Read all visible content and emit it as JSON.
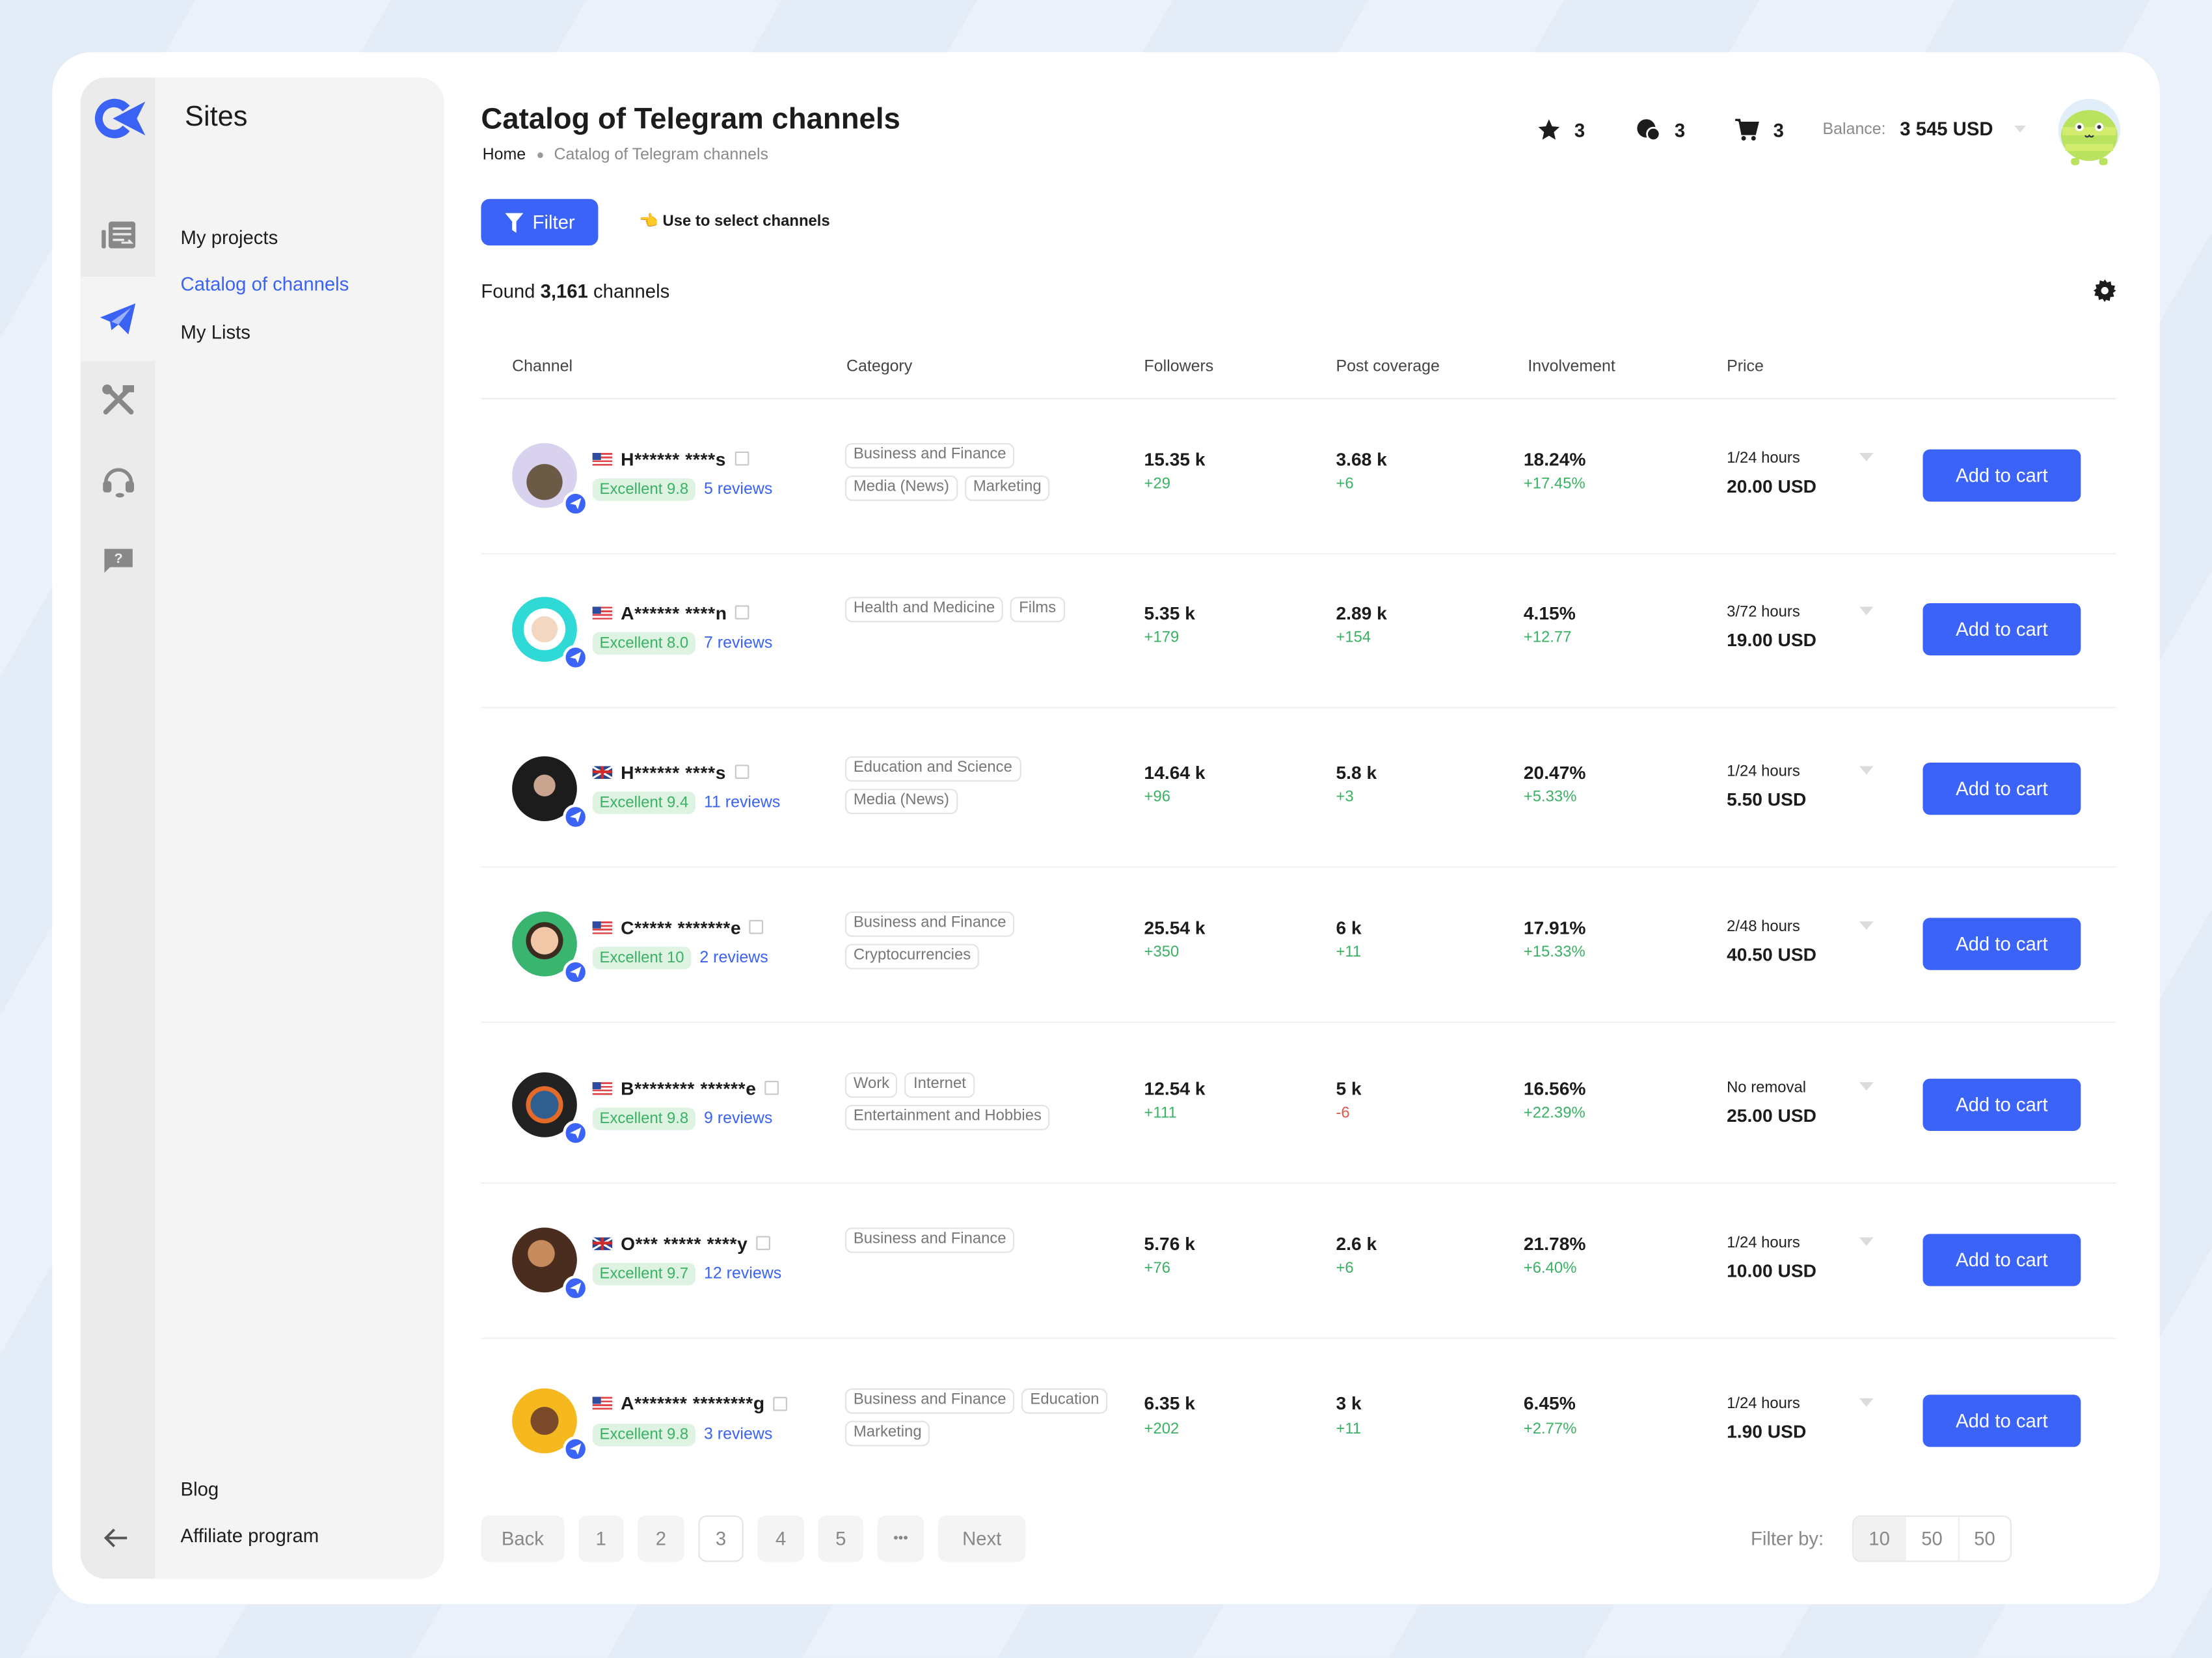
{
  "colors": {
    "accent": "#3c63f7",
    "positive": "#3ab163",
    "negative": "#e05a47"
  },
  "sidebar": {
    "section_title": "Sites",
    "items": [
      {
        "label": "My projects"
      },
      {
        "label": "Catalog of channels",
        "active": true
      },
      {
        "label": "My Lists"
      }
    ],
    "footer_items": [
      {
        "label": "Blog"
      },
      {
        "label": "Affiliate program"
      }
    ],
    "icons": [
      "projects-icon",
      "telegram-icon",
      "tools-icon",
      "support-headset-icon",
      "help-chat-icon"
    ]
  },
  "header": {
    "title": "Catalog of Telegram channels",
    "breadcrumb": [
      "Home",
      "Catalog of Telegram channels"
    ],
    "favorites_count": "3",
    "messages_count": "3",
    "cart_count": "3",
    "balance_label": "Balance:",
    "balance_value": "3 545 USD"
  },
  "toolbar": {
    "filter_label": "Filter",
    "hint": "Use to select channels",
    "found_prefix": "Found",
    "found_count": "3,161",
    "found_suffix": "channels"
  },
  "table": {
    "columns": [
      "Channel",
      "Category",
      "Followers",
      "Post coverage",
      "Involvement",
      "Price"
    ],
    "add_to_cart_label": "Add to cart",
    "rows": [
      {
        "flag": "us",
        "name": "H****** ****s",
        "rating": "Excellent 9.8",
        "reviews": "5 reviews",
        "categories": [
          "Business and Finance",
          "Media (News)",
          "Marketing"
        ],
        "followers": "15.35 k",
        "followers_delta": "+29",
        "coverage": "3.68 k",
        "coverage_delta": "+6",
        "involvement": "18.24%",
        "involvement_delta": "+17.45%",
        "price_period": "1/24 hours",
        "price": "20.00 USD"
      },
      {
        "flag": "us",
        "name": "A****** ****n",
        "rating": "Excellent 8.0",
        "reviews": "7 reviews",
        "categories": [
          "Health and Medicine",
          "Films"
        ],
        "followers": "5.35 k",
        "followers_delta": "+179",
        "coverage": "2.89 k",
        "coverage_delta": "+154",
        "involvement": "4.15%",
        "involvement_delta": "+12.77",
        "price_period": "3/72 hours",
        "price": "19.00 USD"
      },
      {
        "flag": "uk",
        "name": "H****** ****s",
        "rating": "Excellent 9.4",
        "reviews": "11 reviews",
        "categories": [
          "Education and Science",
          "Media (News)"
        ],
        "followers": "14.64 k",
        "followers_delta": "+96",
        "coverage": "5.8 k",
        "coverage_delta": "+3",
        "involvement": "20.47%",
        "involvement_delta": "+5.33%",
        "price_period": "1/24 hours",
        "price": "5.50 USD"
      },
      {
        "flag": "us",
        "name": "C***** *******e",
        "rating": "Excellent 10",
        "reviews": "2 reviews",
        "categories": [
          "Business and Finance",
          "Cryptocurrencies"
        ],
        "followers": "25.54 k",
        "followers_delta": "+350",
        "coverage": "6 k",
        "coverage_delta": "+11",
        "involvement": "17.91%",
        "involvement_delta": "+15.33%",
        "price_period": "2/48 hours",
        "price": "40.50 USD"
      },
      {
        "flag": "us",
        "name": "B******** ******e",
        "rating": "Excellent 9.8",
        "reviews": "9 reviews",
        "categories": [
          "Work",
          "Internet",
          "Entertainment and Hobbies"
        ],
        "followers": "12.54 k",
        "followers_delta": "+111",
        "coverage": "5 k",
        "coverage_delta": "-6",
        "involvement": "16.56%",
        "involvement_delta": "+22.39%",
        "price_period": "No removal",
        "price": "25.00 USD"
      },
      {
        "flag": "uk",
        "name": "O*** ***** ****y",
        "rating": "Excellent 9.7",
        "reviews": "12 reviews",
        "categories": [
          "Business and Finance"
        ],
        "followers": "5.76 k",
        "followers_delta": "+76",
        "coverage": "2.6 k",
        "coverage_delta": "+6",
        "involvement": "21.78%",
        "involvement_delta": "+6.40%",
        "price_period": "1/24 hours",
        "price": "10.00 USD"
      },
      {
        "flag": "us",
        "name": "A******* ********g",
        "rating": "Excellent 9.8",
        "reviews": "3 reviews",
        "categories": [
          "Business and Finance",
          "Education",
          "Marketing"
        ],
        "followers": "6.35 k",
        "followers_delta": "+202",
        "coverage": "3 k",
        "coverage_delta": "+11",
        "involvement": "6.45%",
        "involvement_delta": "+2.77%",
        "price_period": "1/24 hours",
        "price": "1.90 USD"
      }
    ]
  },
  "pagination": {
    "back": "Back",
    "pages": [
      "1",
      "2",
      "3",
      "4",
      "5"
    ],
    "current": "3",
    "ellipsis": "•••",
    "next": "Next"
  },
  "page_size": {
    "label": "Filter by:",
    "options": [
      "10",
      "50",
      "50"
    ],
    "selected": "10"
  }
}
